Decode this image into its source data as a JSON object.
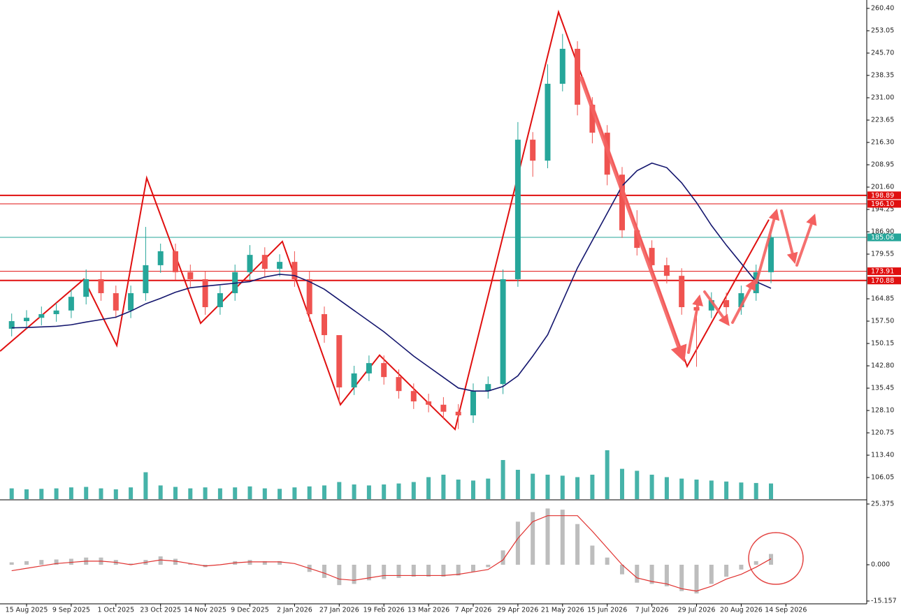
{
  "chart_data": [
    {
      "type": "candlestick",
      "x_labels": [
        "15 Aug 2025",
        "9 Sep 2025",
        "1 Oct 2025",
        "23 Oct 2025",
        "14 Nov 2025",
        "9 Dec 2025",
        "2 Jan 2026",
        "27 Jan 2026",
        "19 Feb 2026",
        "13 Mar 2026",
        "7 Apr 2026",
        "29 Apr 2026",
        "21 May 2026",
        "15 Jun 2026",
        "7 Jul 2026",
        "29 Jul 2026",
        "20 Aug 2026",
        "14 Sep 2026"
      ],
      "open": [
        155.0,
        157.5,
        158.6,
        159.8,
        161.0,
        165.5,
        171.3,
        166.7,
        161.0,
        166.7,
        175.9,
        180.5,
        173.6,
        171.3,
        162.1,
        166.7,
        173.6,
        179.3,
        174.7,
        177.0,
        171.3,
        159.8,
        152.9,
        135.7,
        140.3,
        143.7,
        139.1,
        134.5,
        131.1,
        130.0,
        127.7,
        126.5,
        134.5,
        136.8,
        171.3,
        217.2,
        210.3,
        235.6,
        247.1,
        228.7,
        219.5,
        205.7,
        187.4,
        181.6,
        175.9,
        172.4,
        162.1,
        161.0,
        164.4,
        162.1,
        166.7,
        173.6
      ],
      "high": [
        160.0,
        161.1,
        162.3,
        163.5,
        168.0,
        174.5,
        173.8,
        169.2,
        169.2,
        188.5,
        183.0,
        183.0,
        176.1,
        173.8,
        169.2,
        176.1,
        182.5,
        181.8,
        179.5,
        180.5,
        173.8,
        162.3,
        152.0,
        142.8,
        146.2,
        146.2,
        141.6,
        137.0,
        133.6,
        132.5,
        130.2,
        137.0,
        139.3,
        174.5,
        223.0,
        219.7,
        242.0,
        252.0,
        249.6,
        231.2,
        222.0,
        208.2,
        194.0,
        184.1,
        178.4,
        174.9,
        164.5,
        167.0,
        166.9,
        169.2,
        176.1,
        187.6
      ],
      "low": [
        152.5,
        155.0,
        156.1,
        157.3,
        158.5,
        163.0,
        164.2,
        158.5,
        158.5,
        164.2,
        173.4,
        171.1,
        168.8,
        159.6,
        159.6,
        164.2,
        171.1,
        172.2,
        172.2,
        168.8,
        157.3,
        150.4,
        130.5,
        133.2,
        137.8,
        136.6,
        132.0,
        128.6,
        127.5,
        125.2,
        122.0,
        124.0,
        132.0,
        133.5,
        168.8,
        205.0,
        207.8,
        233.1,
        225.2,
        216.0,
        202.2,
        184.9,
        179.1,
        173.4,
        169.9,
        159.6,
        142.5,
        158.5,
        156.5,
        159.6,
        164.2,
        170.0
      ],
      "close": [
        157.5,
        158.6,
        159.8,
        161.0,
        165.5,
        171.3,
        166.7,
        161.0,
        166.7,
        175.9,
        180.5,
        173.6,
        171.3,
        162.1,
        166.7,
        173.6,
        179.3,
        174.7,
        177.0,
        171.3,
        159.8,
        152.9,
        135.7,
        140.3,
        143.7,
        139.1,
        134.5,
        131.1,
        130.0,
        127.7,
        126.5,
        134.5,
        136.8,
        171.3,
        217.2,
        210.3,
        235.6,
        247.1,
        228.7,
        219.5,
        205.7,
        187.4,
        181.6,
        175.9,
        172.4,
        162.1,
        161.0,
        164.4,
        162.1,
        166.7,
        173.6,
        185.1
      ],
      "up_color": "#26a69a",
      "down_color": "#ef5350",
      "ylim": [
        98.94,
        263.16
      ],
      "yticks": [
        {
          "value": 260.4,
          "label": "260.40"
        },
        {
          "value": 253.05,
          "label": "253.05"
        },
        {
          "value": 245.7,
          "label": "245.70"
        },
        {
          "value": 238.35,
          "label": "238.35"
        },
        {
          "value": 231,
          "label": "231.00"
        },
        {
          "value": 223.65,
          "label": "223.65"
        },
        {
          "value": 216.3,
          "label": "216.30"
        },
        {
          "value": 208.95,
          "label": "208.95"
        },
        {
          "value": 201.6,
          "label": "201.60"
        },
        {
          "value": 194.25,
          "label": "194.25"
        },
        {
          "value": 186.9,
          "label": "186.90"
        },
        {
          "value": 179.55,
          "label": "179.55"
        },
        {
          "value": 164.85,
          "label": "164.85"
        },
        {
          "value": 157.5,
          "label": "157.50"
        },
        {
          "value": 150.15,
          "label": "150.15"
        },
        {
          "value": 142.8,
          "label": "142.80"
        },
        {
          "value": 135.45,
          "label": "135.45"
        },
        {
          "value": 128.1,
          "label": "128.10"
        },
        {
          "value": 120.75,
          "label": "120.75"
        },
        {
          "value": 113.4,
          "label": "113.40"
        },
        {
          "value": 106.05,
          "label": "106.05"
        }
      ],
      "moving_average": {
        "color": "#14166e",
        "values": [
          155.3,
          155.4,
          155.6,
          155.8,
          156.3,
          157.2,
          158.0,
          158.8,
          160.8,
          163.2,
          165.0,
          167.0,
          168.5,
          169.0,
          169.5,
          170.0,
          170.5,
          172.0,
          172.9,
          172.5,
          170.5,
          168.0,
          164.5,
          161.0,
          157.5,
          154.0,
          150.0,
          146.0,
          142.5,
          139.0,
          135.5,
          134.5,
          134.5,
          136.0,
          139.5,
          146.0,
          153.0,
          164.0,
          175.0,
          184.0,
          193.0,
          202.0,
          207.0,
          209.5,
          208.0,
          203.0,
          196.5,
          189.0,
          182.5,
          176.5,
          170.5,
          168.3
        ]
      },
      "volume": {
        "color": "#26a69a",
        "ylim": [
          0,
          100
        ],
        "values": [
          22,
          20,
          21,
          22,
          24,
          25,
          22,
          20,
          24,
          55,
          28,
          25,
          22,
          24,
          22,
          24,
          26,
          22,
          21,
          24,
          26,
          28,
          35,
          30,
          28,
          30,
          32,
          35,
          45,
          50,
          40,
          38,
          42,
          80,
          60,
          52,
          50,
          48,
          45,
          50,
          100,
          62,
          58,
          50,
          45,
          42,
          40,
          38,
          36,
          34,
          33,
          32
        ]
      },
      "zigzag": {
        "color": "#e01010",
        "x": [
          -0.78,
          4.85,
          7.06,
          9.07,
          12.69,
          18.18,
          22.08,
          24.71,
          29.78,
          36.73,
          45.37,
          50.86
        ],
        "y": [
          147.6,
          171.3,
          149.5,
          204.6,
          156.8,
          183.7,
          130.0,
          146.3,
          121.9,
          259.2,
          142.6,
          190.9
        ]
      },
      "levels": [
        {
          "value": 198.89,
          "color": "#e01010",
          "thick": true
        },
        {
          "value": 196.1,
          "label": "196.10",
          "color": "#e01010",
          "thick": false
        },
        {
          "value": 185.06,
          "color": "#26a69a",
          "thick": false
        },
        {
          "value": 173.91,
          "color": "#e01010",
          "thick": false
        },
        {
          "value": 170.88,
          "color": "#e01010",
          "thick": true
        }
      ]
    },
    {
      "type": "macd",
      "ylim": [
        -16.33,
        26.83
      ],
      "yticks": [
        25.375,
        {
          "value": 0,
          "label": "0.000"
        },
        -15.157
      ],
      "histogram": {
        "color": "#bdbdbd",
        "values": [
          1.0,
          1.5,
          2.0,
          2.2,
          2.5,
          3.0,
          3.0,
          2.0,
          0.5,
          2.0,
          3.5,
          2.5,
          0.5,
          -1.0,
          0.0,
          1.5,
          2.0,
          1.5,
          1.5,
          0.0,
          -3.0,
          -5.5,
          -8.5,
          -8.0,
          -6.5,
          -6.0,
          -5.5,
          -5.0,
          -5.0,
          -5.0,
          -4.5,
          -3.0,
          -1.0,
          6.0,
          18.0,
          22.0,
          23.5,
          23.0,
          17.0,
          8.0,
          3.0,
          -4.0,
          -7.5,
          -8.0,
          -9.0,
          -11.0,
          -12.0,
          -8.0,
          -5.0,
          -2.0,
          1.5,
          4.5
        ]
      },
      "signal": {
        "color": "#e0312f",
        "values": [
          -2.5,
          -1.5,
          -0.5,
          0.5,
          1.0,
          1.5,
          1.5,
          1.0,
          0.0,
          1.0,
          2.0,
          1.5,
          0.5,
          -0.5,
          0.0,
          0.8,
          1.2,
          1.2,
          1.2,
          0.5,
          -1.5,
          -3.5,
          -6.0,
          -6.5,
          -5.5,
          -4.5,
          -4.5,
          -4.5,
          -4.5,
          -4.5,
          -4.0,
          -3.0,
          -2.0,
          2.0,
          11.0,
          18.0,
          20.5,
          20.5,
          20.5,
          14.0,
          7.0,
          0.0,
          -5.5,
          -7.0,
          -8.0,
          -10.0,
          -11.0,
          -9.0,
          -6.0,
          -4.0,
          -1.0,
          2.5
        ]
      }
    }
  ]
}
